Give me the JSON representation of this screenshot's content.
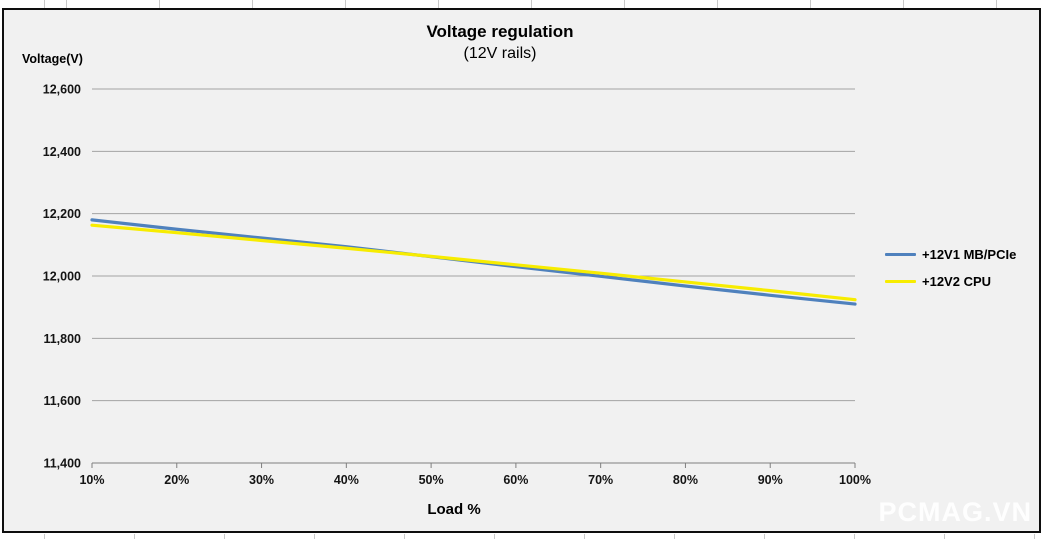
{
  "watermark": "PCMAG.VN",
  "chart_data": {
    "type": "line",
    "title": "Voltage regulation",
    "subtitle": "(12V rails)",
    "y_axis_title": "Voltage(V)",
    "x_axis_title": "Load %",
    "categories": [
      "10%",
      "20%",
      "30%",
      "40%",
      "50%",
      "60%",
      "70%",
      "80%",
      "90%",
      "100%"
    ],
    "series": [
      {
        "name": "+12V1 MB/PCIe",
        "color": "#4F81BD",
        "values": [
          12180,
          12150,
          12122,
          12094,
          12062,
          12030,
          11999,
          11968,
          11938,
          11910
        ]
      },
      {
        "name": "+12V2 CPU",
        "color": "#F7EC00",
        "values": [
          12163,
          12139,
          12114,
          12089,
          12063,
          12036,
          12009,
          11981,
          11953,
          11924
        ]
      }
    ],
    "ylim": [
      11400,
      12600
    ],
    "y_tick_step": 200,
    "y_tick_labels": [
      "12,600",
      "12,400",
      "12,200",
      "12,000",
      "11,800",
      "11,600",
      "11,400"
    ],
    "grid": true,
    "legend_position": "right",
    "colors": {
      "plot_background": "#F1F1F1",
      "gridline": "#A3A3A3",
      "axis": "#7F7F7F",
      "frame_border": "#0E0E0E",
      "tick_text": "#141414"
    }
  }
}
